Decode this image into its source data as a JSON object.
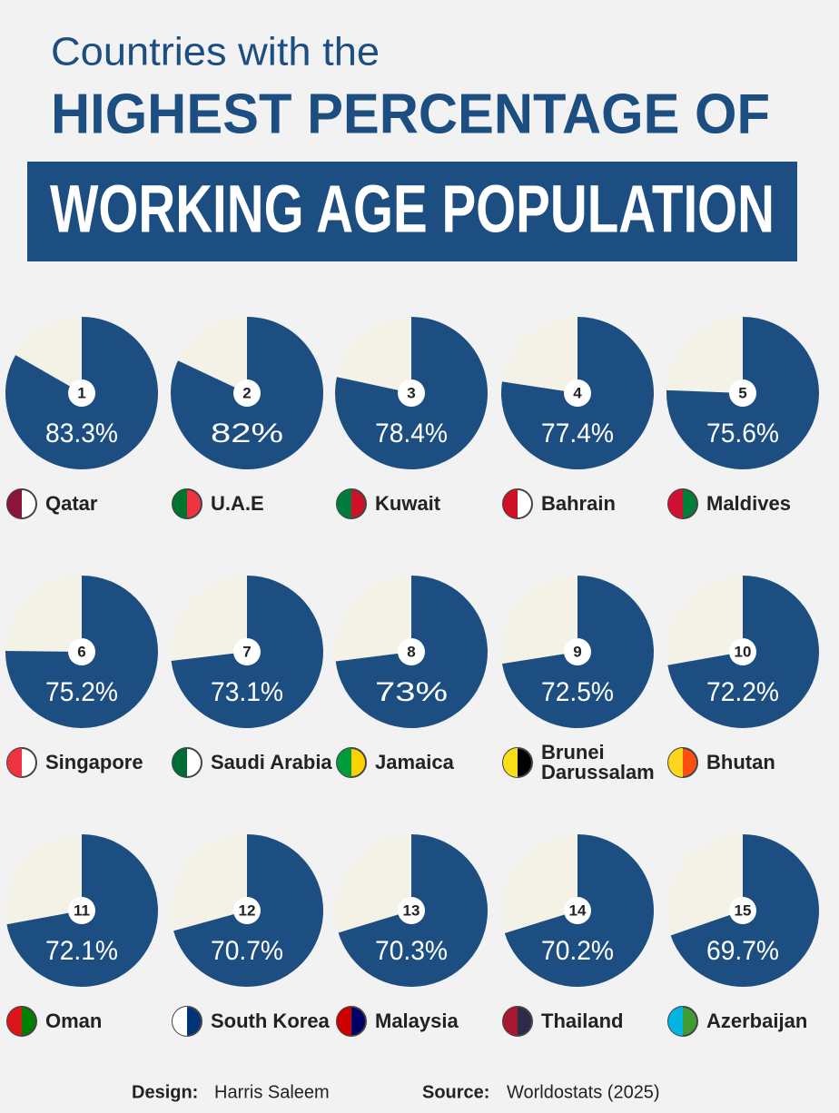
{
  "chart_data": {
    "type": "pie",
    "title_line1": "Countries with the",
    "title_line2": "HIGHEST PERCENTAGE OF",
    "title_line3": "WORKING AGE POPULATION",
    "ranks": [
      1,
      2,
      3,
      4,
      5,
      6,
      7,
      8,
      9,
      10,
      11,
      12,
      13,
      14,
      15
    ],
    "categories": [
      "Qatar",
      "U.A.E",
      "Kuwait",
      "Bahrain",
      "Maldives",
      "Singapore",
      "Saudi Arabia",
      "Jamaica",
      "Brunei Darussalam",
      "Bhutan",
      "Oman",
      "South Korea",
      "Malaysia",
      "Thailand",
      "Azerbaijan"
    ],
    "values": [
      83.3,
      82,
      78.4,
      77.4,
      75.6,
      75.2,
      73.1,
      73,
      72.5,
      72.2,
      72.1,
      70.7,
      70.3,
      70.2,
      69.7
    ],
    "value_labels": [
      "83.3%",
      "82%",
      "78.4%",
      "77.4%",
      "75.6%",
      "75.2%",
      "73.1%",
      "73%",
      "72.5%",
      "72.2%",
      "72.1%",
      "70.7%",
      "70.3%",
      "70.2%",
      "69.7%"
    ],
    "color": "#1d4e82",
    "remainder_color": "#f4f1e6",
    "flag_colors": [
      [
        "#8a1538",
        "#ffffff"
      ],
      [
        "#00732f",
        "#ef3340"
      ],
      [
        "#007a3d",
        "#ce1126"
      ],
      [
        "#ce1126",
        "#ffffff"
      ],
      [
        "#d21034",
        "#007e3a"
      ],
      [
        "#ef3340",
        "#ffffff"
      ],
      [
        "#006c35",
        "#ffffff"
      ],
      [
        "#009b3a",
        "#fed100"
      ],
      [
        "#f7e017",
        "#000000"
      ],
      [
        "#ffd520",
        "#ff4e12"
      ],
      [
        "#db161b",
        "#008000"
      ],
      [
        "#ffffff",
        "#003478"
      ],
      [
        "#cc0001",
        "#010066"
      ],
      [
        "#a51931",
        "#2d2a4a"
      ],
      [
        "#00b5e2",
        "#3f9c35"
      ]
    ],
    "design_label": "Design:",
    "designer": "Harris Saleem",
    "source_label": "Source:",
    "source": "Worldostats (2025)"
  }
}
